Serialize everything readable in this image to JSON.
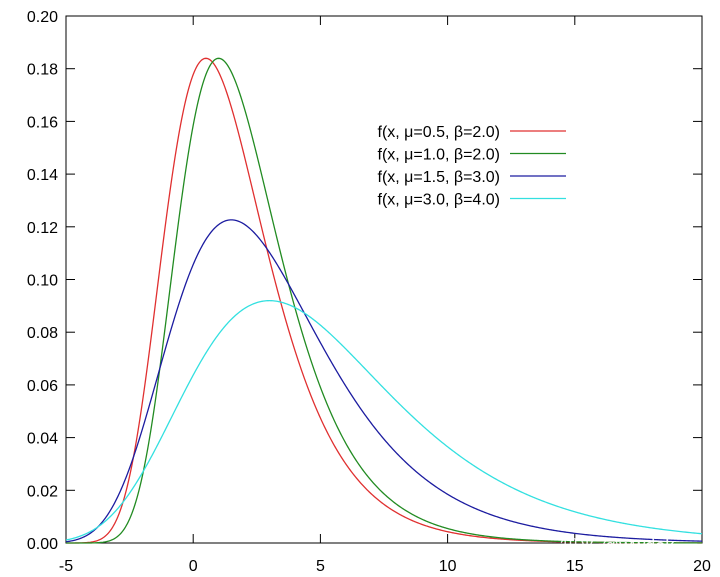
{
  "chart_data": {
    "type": "line",
    "title": "",
    "xlabel": "",
    "ylabel": "",
    "xlim": [
      -5,
      20
    ],
    "ylim": [
      0,
      0.2
    ],
    "grid": false,
    "legend_position": "top-right",
    "xticks": [
      -5,
      0,
      5,
      10,
      15,
      20
    ],
    "yticks": [
      0.0,
      0.02,
      0.04,
      0.06,
      0.08,
      0.1,
      0.12,
      0.14,
      0.16,
      0.18,
      0.2
    ],
    "xtick_labels": [
      "-5",
      "0",
      "5",
      "10",
      "15",
      "20"
    ],
    "ytick_labels": [
      "0.00",
      "0.02",
      "0.04",
      "0.06",
      "0.08",
      "0.10",
      "0.12",
      "0.14",
      "0.16",
      "0.18",
      "0.20"
    ],
    "series": [
      {
        "name": "f(x, μ=0.5, β=2.0)",
        "mu": 0.5,
        "beta": 2.0,
        "color": "#e03030"
      },
      {
        "name": "f(x, μ=1.0, β=2.0)",
        "mu": 1.0,
        "beta": 2.0,
        "color": "#228b22"
      },
      {
        "name": "f(x, μ=1.5, β=3.0)",
        "mu": 1.5,
        "beta": 3.0,
        "color": "#1c1ca0"
      },
      {
        "name": "f(x, μ=3.0, β=4.0)",
        "mu": 3.0,
        "beta": 4.0,
        "color": "#33e0e0"
      }
    ]
  },
  "watermark": "知乎 @wwdok"
}
